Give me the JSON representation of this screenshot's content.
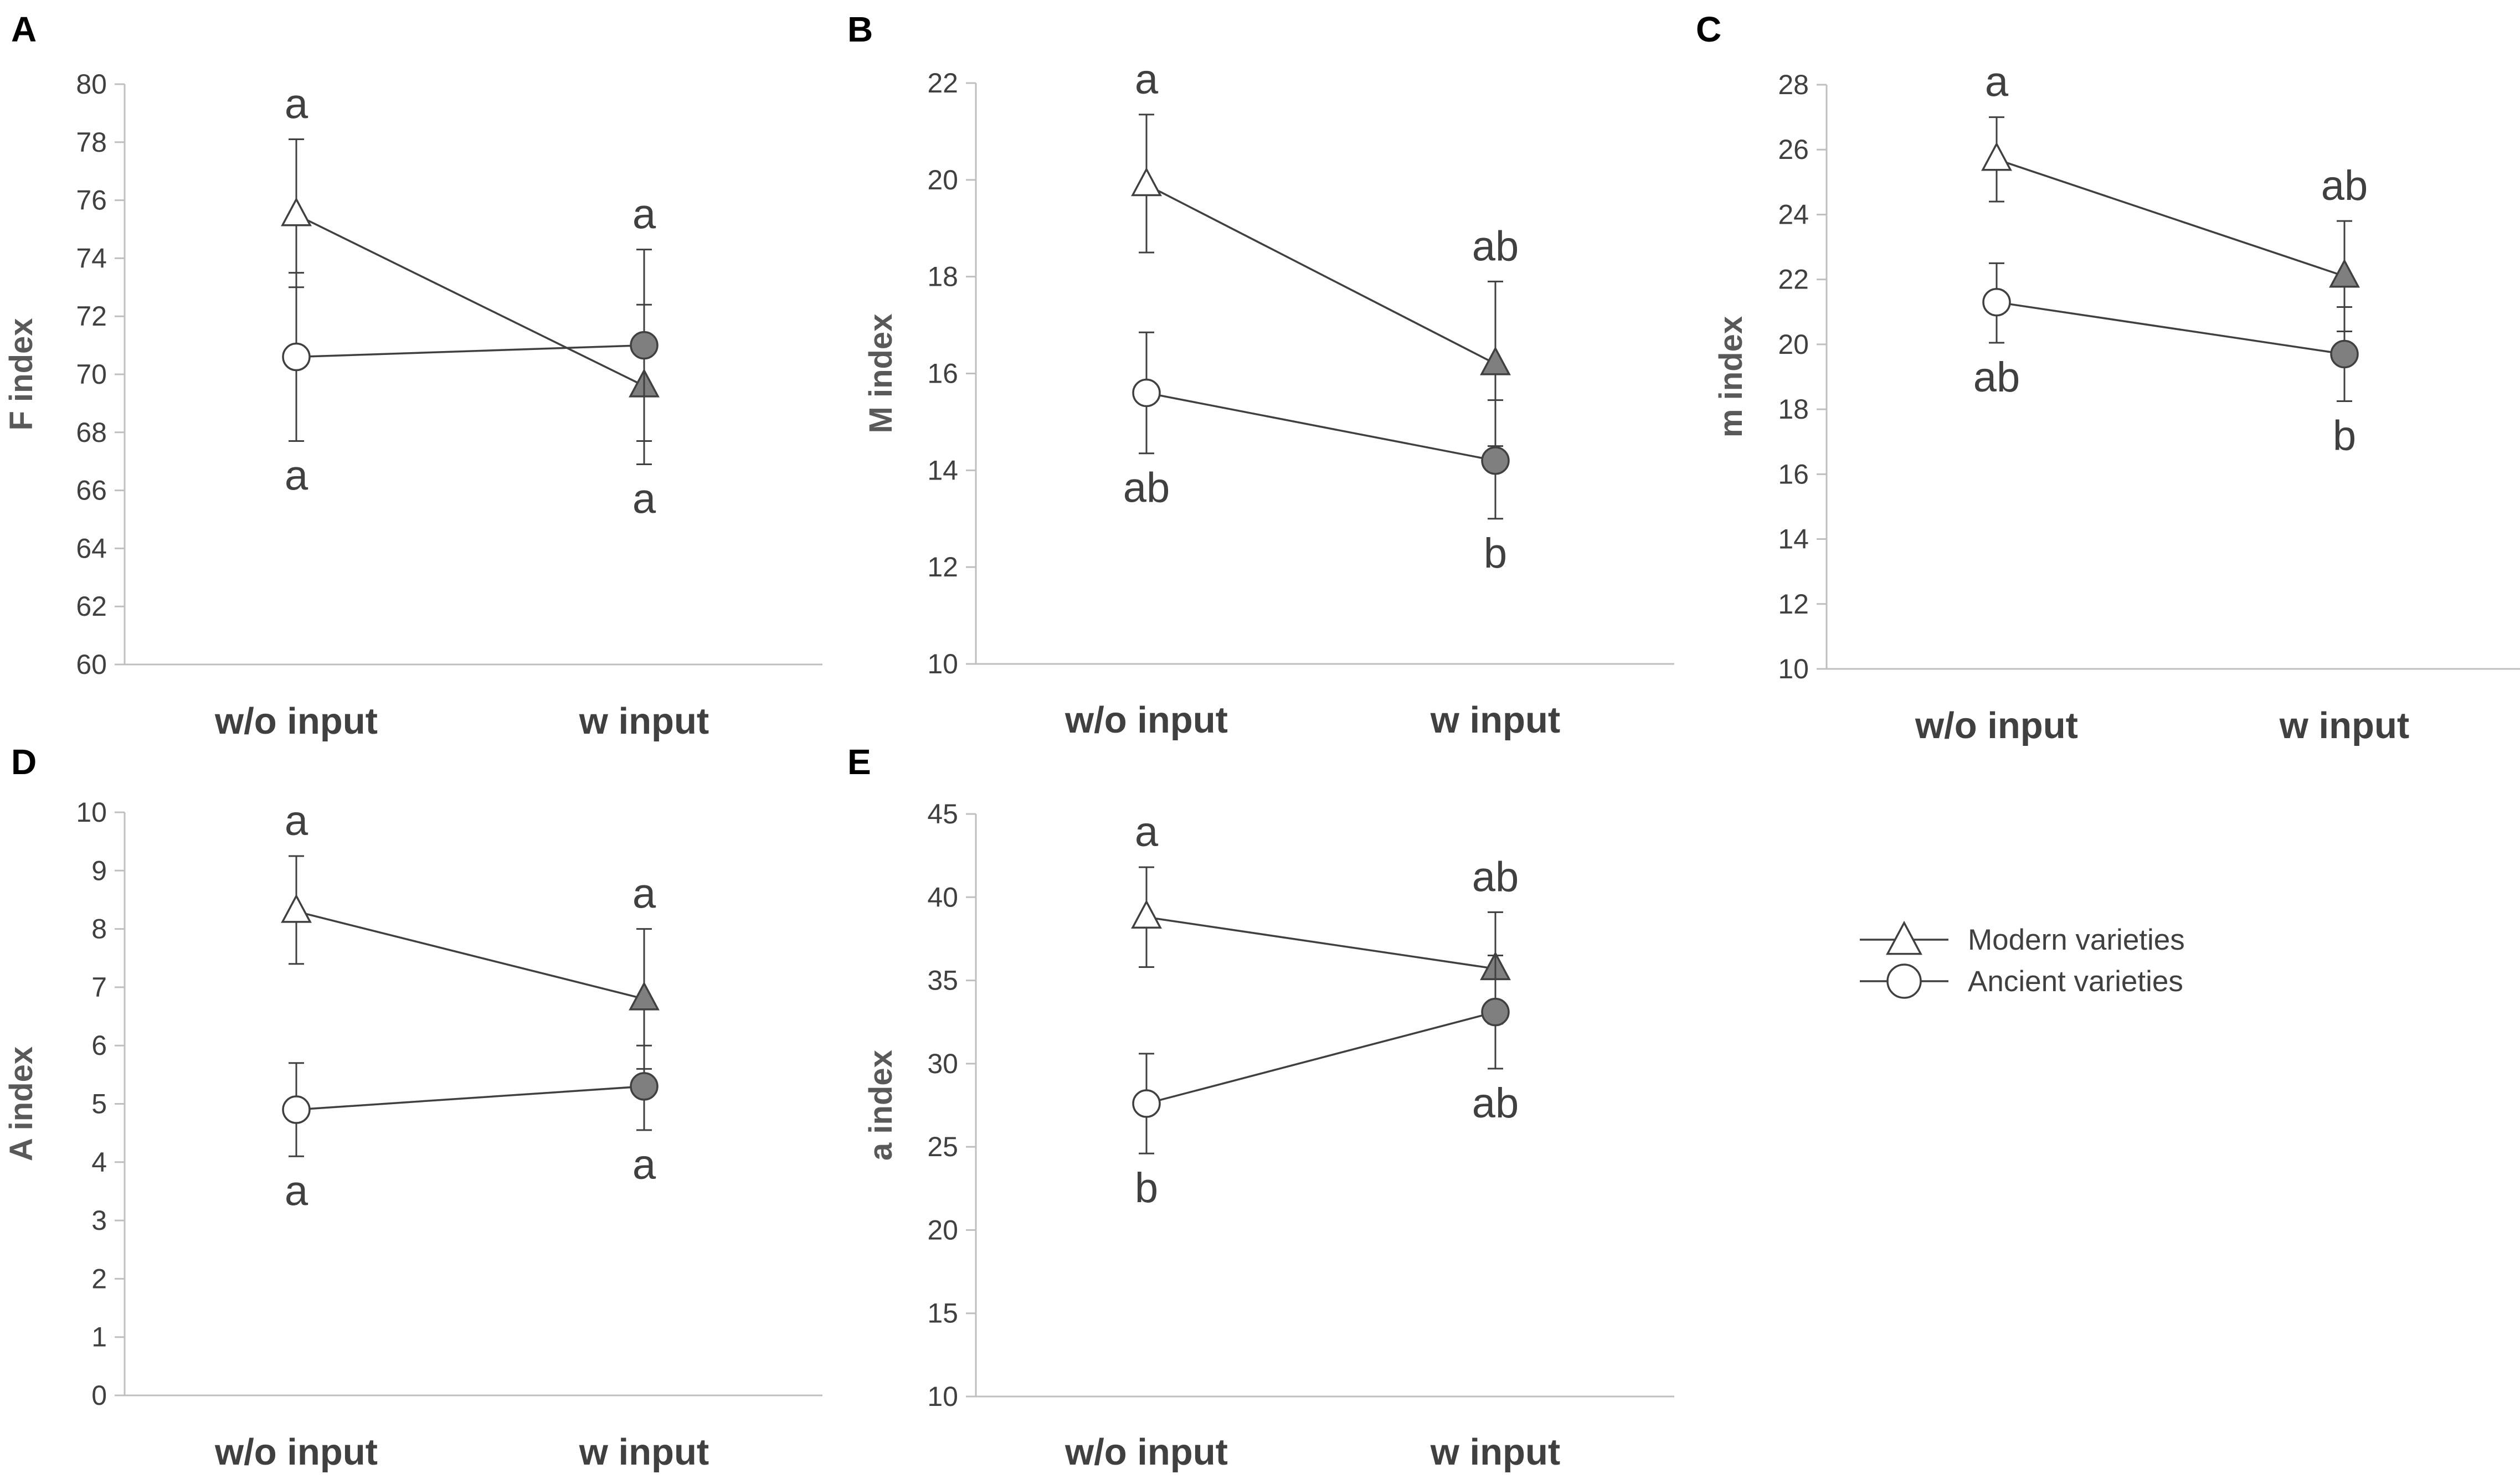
{
  "style": {
    "axis_color": "#BFBFBF",
    "line_color": "#404040",
    "modern_fill_wo": "#FFFFFF",
    "modern_fill_w": "#7F7F7F",
    "ancient_fill_wo": "#FFFFFF",
    "ancient_fill_w": "#7F7F7F",
    "modern_marker": "triangle-icon",
    "ancient_marker": "circle-icon"
  },
  "legend": {
    "modern": "Modern varieties",
    "ancient": "Ancient varieties"
  },
  "chart_data": [
    {
      "panel": "A",
      "type": "line",
      "ylabel": "F index",
      "categories": [
        "w/o input",
        "w input"
      ],
      "ylim": [
        60,
        80
      ],
      "ystep": 2,
      "yticks": [
        "60",
        "62",
        "64",
        "66",
        "68",
        "70",
        "72",
        "74",
        "76",
        "78",
        "80"
      ],
      "series": [
        {
          "name": "Modern varieties",
          "values": [
            75.5,
            69.6
          ],
          "err_plus": [
            2.6,
            2.8
          ],
          "err_minus": [
            2.5,
            2.7
          ],
          "letters": [
            "a",
            "a"
          ]
        },
        {
          "name": "Ancient varieties",
          "values": [
            70.6,
            71.0
          ],
          "err_plus": [
            2.9,
            3.3
          ],
          "err_minus": [
            2.9,
            3.3
          ],
          "letters": [
            "a",
            "a"
          ]
        }
      ]
    },
    {
      "panel": "B",
      "type": "line",
      "ylabel": "M index",
      "categories": [
        "w/o input",
        "w input"
      ],
      "ylim": [
        10,
        22
      ],
      "ystep": 2,
      "yticks": [
        "10",
        "12",
        "14",
        "16",
        "18",
        "20",
        "22"
      ],
      "series": [
        {
          "name": "Modern varieties",
          "values": [
            19.9,
            16.2
          ],
          "err_plus": [
            1.45,
            1.7
          ],
          "err_minus": [
            1.4,
            1.7
          ],
          "letters": [
            "a",
            "ab"
          ]
        },
        {
          "name": "Ancient varieties",
          "values": [
            15.6,
            14.2
          ],
          "err_plus": [
            1.25,
            1.25
          ],
          "err_minus": [
            1.25,
            1.2
          ],
          "letters": [
            "ab",
            "b"
          ]
        }
      ]
    },
    {
      "panel": "C",
      "type": "line",
      "ylabel": "m index",
      "categories": [
        "w/o input",
        "w input"
      ],
      "ylim": [
        10,
        28
      ],
      "ystep": 2,
      "yticks": [
        "10",
        "12",
        "14",
        "16",
        "18",
        "20",
        "22",
        "24",
        "26",
        "28"
      ],
      "series": [
        {
          "name": "Modern varieties",
          "values": [
            25.7,
            22.1
          ],
          "err_plus": [
            1.3,
            1.7
          ],
          "err_minus": [
            1.3,
            1.7
          ],
          "letters": [
            "a",
            "ab"
          ]
        },
        {
          "name": "Ancient varieties",
          "values": [
            21.3,
            19.7
          ],
          "err_plus": [
            1.2,
            1.45
          ],
          "err_minus": [
            1.25,
            1.45
          ],
          "letters": [
            "ab",
            "b"
          ]
        }
      ]
    },
    {
      "panel": "D",
      "type": "line",
      "ylabel": "A index",
      "categories": [
        "w/o input",
        "w input"
      ],
      "ylim": [
        0,
        10
      ],
      "ystep": 1,
      "yticks": [
        "0",
        "1",
        "2",
        "3",
        "4",
        "5",
        "6",
        "7",
        "8",
        "9",
        "10"
      ],
      "series": [
        {
          "name": "Modern varieties",
          "values": [
            8.3,
            6.8
          ],
          "err_plus": [
            0.95,
            1.2
          ],
          "err_minus": [
            0.9,
            1.2
          ],
          "letters": [
            "a",
            "a"
          ]
        },
        {
          "name": "Ancient varieties",
          "values": [
            4.9,
            5.3
          ],
          "err_plus": [
            0.8,
            0.7
          ],
          "err_minus": [
            0.8,
            0.75
          ],
          "letters": [
            "a",
            "a"
          ]
        }
      ]
    },
    {
      "panel": "E",
      "type": "line",
      "ylabel": "a index",
      "categories": [
        "w/o input",
        "w input"
      ],
      "ylim": [
        10,
        45
      ],
      "ystep": 5,
      "yticks": [
        "10",
        "15",
        "20",
        "25",
        "30",
        "35",
        "40",
        "45"
      ],
      "series": [
        {
          "name": "Modern varieties",
          "values": [
            38.8,
            35.7
          ],
          "err_plus": [
            3.0,
            3.4
          ],
          "err_minus": [
            3.0,
            3.3
          ],
          "letters": [
            "a",
            "ab"
          ]
        },
        {
          "name": "Ancient varieties",
          "values": [
            27.6,
            33.1
          ],
          "err_plus": [
            3.0,
            3.4
          ],
          "err_minus": [
            3.0,
            3.4
          ],
          "letters": [
            "b",
            "ab"
          ]
        }
      ]
    }
  ]
}
